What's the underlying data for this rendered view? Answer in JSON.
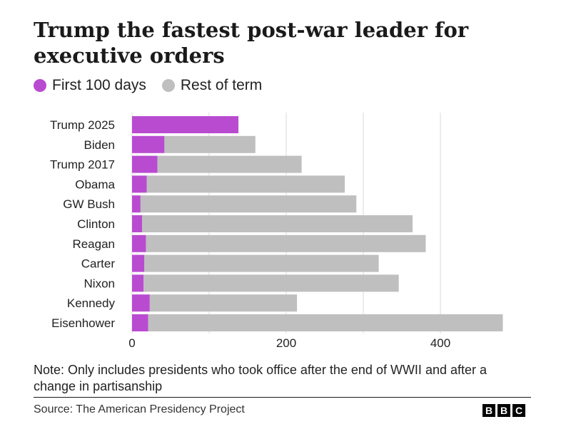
{
  "title": "Trump the fastest post-war leader for executive orders",
  "legend": {
    "first": {
      "label": "First 100 days",
      "color": "#b94bd0"
    },
    "rest": {
      "label": "Rest of term",
      "color": "#bfbfbf"
    }
  },
  "note": "Note: Only includes presidents who took office after the end of WWII and after a change in partisanship",
  "source": "Source: The American Presidency Project",
  "logo": [
    "B",
    "B",
    "C"
  ],
  "chart_data": {
    "type": "bar",
    "orientation": "horizontal",
    "stacked": true,
    "categories": [
      "Trump 2025",
      "Biden",
      "Trump 2017",
      "Obama",
      "GW Bush",
      "Clinton",
      "Reagan",
      "Carter",
      "Nixon",
      "Kennedy",
      "Eisenhower"
    ],
    "series": [
      {
        "name": "First 100 days",
        "color": "#b94bd0",
        "values": [
          138,
          42,
          33,
          19,
          11,
          13,
          18,
          16,
          15,
          23,
          21
        ]
      },
      {
        "name": "Rest of term",
        "color": "#bfbfbf",
        "values": [
          0,
          118,
          187,
          257,
          280,
          351,
          363,
          304,
          331,
          191,
          460
        ]
      }
    ],
    "xlim": [
      0,
      500
    ],
    "xticks": [
      0,
      200,
      400
    ],
    "gridlines": [
      0,
      100,
      200,
      300,
      400
    ],
    "xlabel": "",
    "ylabel": ""
  }
}
